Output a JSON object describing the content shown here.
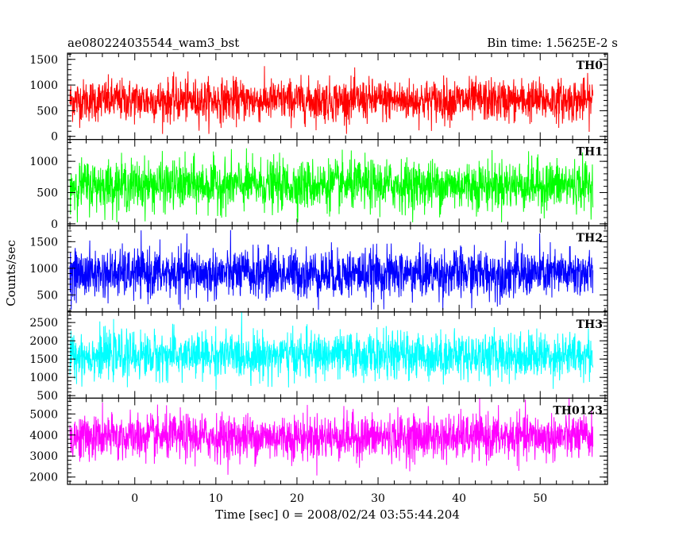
{
  "title": "ae080224035544_wam3_bst",
  "bin_time": "Bin time: 1.5625E-2 s",
  "xlabel": "Time [sec] 0 = 2008/02/24 03:55:44.204",
  "ylabel": "Counts/sec",
  "chart_data": {
    "type": "line",
    "title": "ae080224035544_wam3_bst",
    "xlabel": "Time [sec] 0 = 2008/02/24 03:55:44.204",
    "ylabel": "Counts/sec",
    "xlim": [
      -8.3,
      58.3
    ],
    "data_range": [
      -8,
      56.5
    ],
    "x_ticks": [
      0,
      10,
      20,
      30,
      40,
      50
    ],
    "x_tick_labels": [
      "0",
      "10",
      "20",
      "30",
      "40",
      "50"
    ],
    "grid": false,
    "panels": [
      {
        "name": "TH0",
        "color": "#ff0000",
        "ylim": [
          -60,
          1620
        ],
        "y_ticks": [
          0,
          500,
          1000,
          1500
        ],
        "y_tick_labels": [
          "0",
          "500",
          "1000",
          "1500"
        ],
        "mean": 700,
        "spread": 340,
        "low_clip": 120,
        "high_clip": 1620
      },
      {
        "name": "TH1",
        "color": "#00ff00",
        "ylim": [
          -30,
          1350
        ],
        "y_ticks": [
          0,
          500,
          1000
        ],
        "y_tick_labels": [
          "0",
          "500",
          "1000"
        ],
        "mean": 620,
        "spread": 330,
        "low_clip": 60,
        "high_clip": 1350
      },
      {
        "name": "TH2",
        "color": "#0000ff",
        "ylim": [
          180,
          1800
        ],
        "y_ticks": [
          500,
          1000,
          1500
        ],
        "y_tick_labels": [
          "500",
          "1000",
          "1500"
        ],
        "mean": 900,
        "spread": 380,
        "low_clip": 250,
        "high_clip": 1800
      },
      {
        "name": "TH3",
        "color": "#00ffff",
        "ylim": [
          430,
          2790
        ],
        "y_ticks": [
          500,
          1000,
          1500,
          2000,
          2500
        ],
        "y_tick_labels": [
          "500",
          "1000",
          "1500",
          "2000",
          "2500"
        ],
        "mean": 1600,
        "spread": 520,
        "low_clip": 550,
        "high_clip": 2790
      },
      {
        "name": "TH0123",
        "color": "#ff00ff",
        "ylim": [
          1650,
          5750
        ],
        "y_ticks": [
          2000,
          3000,
          4000,
          5000
        ],
        "y_tick_labels": [
          "2000",
          "3000",
          "4000",
          "5000"
        ],
        "mean": 3900,
        "spread": 900,
        "low_clip": 1900,
        "high_clip": 5750
      }
    ]
  }
}
